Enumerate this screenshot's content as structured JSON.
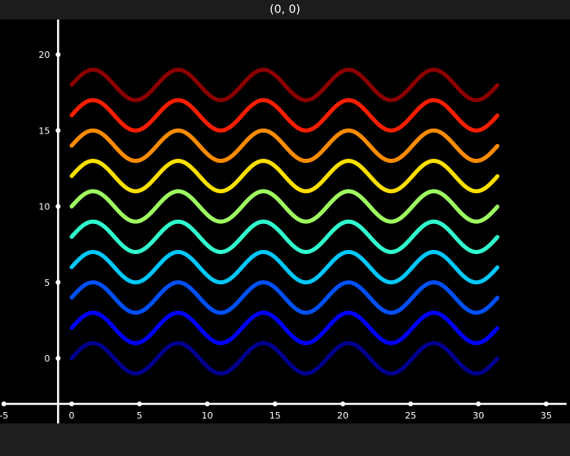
{
  "window": {
    "title": "(0, 0)"
  },
  "chart_data": {
    "type": "line",
    "title": "",
    "xlabel": "",
    "ylabel": "",
    "xlim": [
      -5,
      36.5
    ],
    "ylim": [
      -3,
      22.5
    ],
    "x_ticks": [
      -5,
      0,
      5,
      10,
      15,
      20,
      25,
      30,
      35
    ],
    "y_ticks": [
      0,
      5,
      10,
      15,
      20
    ],
    "grid": false,
    "background": "#000000",
    "axis_color": "#ffffff",
    "x_range": [
      0,
      31.4
    ],
    "function": "y = sin(x) + offset",
    "series": [
      {
        "offset": 0,
        "color": "#00008f"
      },
      {
        "offset": 2,
        "color": "#0000ff"
      },
      {
        "offset": 4,
        "color": "#0050ff"
      },
      {
        "offset": 6,
        "color": "#00c8ff"
      },
      {
        "offset": 8,
        "color": "#30ffcf"
      },
      {
        "offset": 10,
        "color": "#9fff60"
      },
      {
        "offset": 12,
        "color": "#ffe000"
      },
      {
        "offset": 14,
        "color": "#ff8c00"
      },
      {
        "offset": 16,
        "color": "#ff1e00"
      },
      {
        "offset": 18,
        "color": "#8b0000"
      }
    ]
  }
}
